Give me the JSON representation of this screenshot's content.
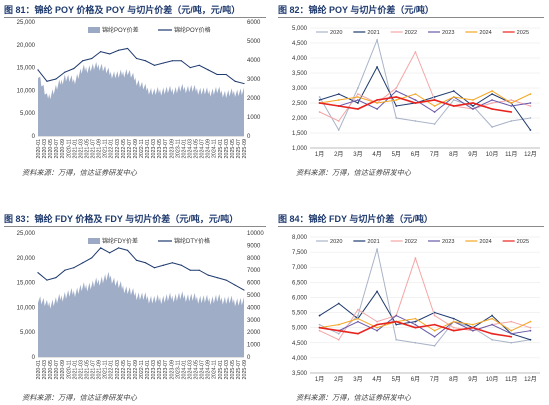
{
  "charts_meta": [
    {
      "title": "图 81：锦纶 POY 价格及 POY 与切片价差（元/吨，元/吨）",
      "source": "资料来源：万得，信达证券研发中心",
      "legend": [
        "锦纶POY价差",
        "锦纶POY价格"
      ]
    },
    {
      "title": "图 82：锦纶 POY 与切片价差（元/吨）",
      "source": "资料来源：万得，信达证券研发中心",
      "legend": [
        "2020",
        "2021",
        "2022",
        "2023",
        "2024",
        "2025"
      ]
    },
    {
      "title": "图 83：锦纶 FDY 价格及 FDY 与切片价差（元/吨，元/吨）",
      "source": "资料来源：万得，信达证券研发中心",
      "legend": [
        "锦纶FDY价差",
        "锦纶DTY价格"
      ]
    },
    {
      "title": "图 84：锦纶 FDY 与切片价差（元/吨）",
      "source": "资料来源：万得，信达证券研发中心",
      "legend": [
        "2020",
        "2021",
        "2022",
        "2023",
        "2024",
        "2025"
      ]
    }
  ],
  "chart_data": [
    {
      "type": "area",
      "x": [
        "2020-01",
        "2020-04",
        "2020-07",
        "2020-10",
        "2021-01",
        "2021-04",
        "2021-07",
        "2021-10",
        "2022-01",
        "2022-04",
        "2022-07",
        "2022-10",
        "2023-01",
        "2023-04",
        "2023-07",
        "2023-10",
        "2024-01",
        "2024-04",
        "2024-07",
        "2024-10",
        "2025-01",
        "2025-04",
        "2025-07",
        "2025-10"
      ],
      "xticks": [
        "2020-01",
        "2020-03",
        "2020-05",
        "2020-07",
        "2020-09",
        "2020-11",
        "2021-01",
        "2021-03",
        "2021-05",
        "2021-07",
        "2021-09",
        "2021-11",
        "2022-01",
        "2022-03",
        "2022-05",
        "2022-07",
        "2022-09",
        "2022-11",
        "2023-01",
        "2023-03",
        "2023-05",
        "2023-07",
        "2023-09",
        "2023-11",
        "2024-01",
        "2024-03",
        "2024-05",
        "2024-07",
        "2024-09",
        "2024-11",
        "2025-01",
        "2025-03",
        "2025-05",
        "2025-07",
        "2025-09"
      ],
      "series": [
        {
          "name": "锦纶POY价差",
          "axis": "right",
          "kind": "area",
          "color": "#9ba9c4",
          "values": [
            3300,
            2000,
            2500,
            3100,
            2900,
            3500,
            3600,
            3700,
            3300,
            3200,
            3400,
            2900,
            2500,
            2300,
            2400,
            2400,
            2500,
            2500,
            2400,
            2300,
            2400,
            2200,
            2300,
            2300
          ]
        },
        {
          "name": "锦纶POY价格",
          "axis": "left",
          "kind": "line",
          "color": "#1f3a6e",
          "values": [
            14500,
            12000,
            12500,
            14000,
            14800,
            16500,
            17000,
            18500,
            18000,
            18800,
            19200,
            17000,
            16500,
            15500,
            16000,
            16500,
            16500,
            15000,
            15500,
            14500,
            13500,
            13500,
            12000,
            11500
          ]
        }
      ],
      "yleft": {
        "min": 0,
        "max": 25000,
        "ticks": [
          0,
          5000,
          10000,
          15000,
          20000,
          25000
        ],
        "labels": [
          "0",
          "5,000",
          "10,000",
          "15,000",
          "20,000",
          "25,000"
        ]
      },
      "yright": {
        "min": 0,
        "max": 6000,
        "ticks": [
          0,
          1000,
          2000,
          3000,
          4000,
          5000,
          6000
        ],
        "labels": [
          "0",
          "1000",
          "2000",
          "3000",
          "4000",
          "5000",
          "6000"
        ]
      }
    },
    {
      "type": "line",
      "x": [
        "1月",
        "2月",
        "3月",
        "4月",
        "5月",
        "6月",
        "7月",
        "8月",
        "9月",
        "10月",
        "11月",
        "12月"
      ],
      "ylim": [
        1000,
        5000
      ],
      "yticks": [
        1000,
        1500,
        2000,
        2500,
        3000,
        3500,
        4000,
        4500,
        5000
      ],
      "ylabels": [
        "1,000",
        "1,500",
        "2,000",
        "2,500",
        "3,000",
        "3,500",
        "4,000",
        "4,500",
        "5,000"
      ],
      "series": [
        {
          "name": "2020",
          "color": "#a9b4c8",
          "values": [
            2700,
            1600,
            3000,
            4600,
            2000,
            1900,
            1800,
            2600,
            2400,
            1700,
            1900,
            2000
          ]
        },
        {
          "name": "2021",
          "color": "#1f3a6e",
          "values": [
            2600,
            2800,
            2500,
            3700,
            2400,
            2500,
            2700,
            2900,
            2400,
            2800,
            2500,
            1600
          ]
        },
        {
          "name": "2022",
          "color": "#f4a6a6",
          "values": [
            2200,
            1900,
            2800,
            2500,
            3000,
            4200,
            2600,
            2400,
            2300,
            2500,
            2600,
            2400
          ]
        },
        {
          "name": "2023",
          "color": "#6b5aa8",
          "values": [
            2500,
            2400,
            2600,
            2300,
            2900,
            2600,
            2200,
            2700,
            2300,
            2600,
            2400,
            2500
          ]
        },
        {
          "name": "2024",
          "color": "#f5a623",
          "values": [
            2500,
            2600,
            2700,
            2500,
            2600,
            2800,
            2400,
            2700,
            2600,
            2900,
            2500,
            2800
          ]
        },
        {
          "name": "2025",
          "color": "#e8231e",
          "values": [
            2500,
            2400,
            2300,
            2600,
            2700,
            2500,
            2600,
            2400,
            2500,
            2300,
            2200,
            null
          ]
        }
      ]
    },
    {
      "type": "area",
      "x": [
        "2020-01",
        "2020-04",
        "2020-07",
        "2020-10",
        "2021-01",
        "2021-04",
        "2021-07",
        "2021-10",
        "2022-01",
        "2022-04",
        "2022-07",
        "2022-10",
        "2023-01",
        "2023-04",
        "2023-07",
        "2023-10",
        "2024-01",
        "2024-04",
        "2024-07",
        "2024-10",
        "2025-01",
        "2025-04",
        "2025-07",
        "2025-10"
      ],
      "xticks": [
        "2020-01",
        "2020-03",
        "2020-05",
        "2020-07",
        "2020-09",
        "2020-11",
        "2021-01",
        "2021-03",
        "2021-05",
        "2021-07",
        "2021-09",
        "2021-11",
        "2022-01",
        "2022-03",
        "2022-05",
        "2022-07",
        "2022-09",
        "2022-11",
        "2023-01",
        "2023-03",
        "2023-05",
        "2023-07",
        "2023-09",
        "2023-11",
        "2024-01",
        "2024-03",
        "2024-05",
        "2024-07",
        "2024-09",
        "2024-11",
        "2025-01",
        "2025-03",
        "2025-05",
        "2025-07",
        "2025-09"
      ],
      "series": [
        {
          "name": "锦纶FDY价差",
          "axis": "right",
          "kind": "area",
          "color": "#9ba9c4",
          "values": [
            4800,
            4200,
            4500,
            5000,
            5200,
            5600,
            5800,
            6200,
            6500,
            5800,
            5400,
            5000,
            4800,
            4600,
            4700,
            4800,
            4900,
            4800,
            4700,
            4600,
            4700,
            4600,
            4500,
            4400
          ]
        },
        {
          "name": "锦纶DTY价格",
          "axis": "left",
          "kind": "line",
          "color": "#1f3a6e",
          "values": [
            17000,
            15500,
            16000,
            17500,
            18000,
            19000,
            20000,
            22000,
            21000,
            22000,
            21500,
            19500,
            19000,
            18000,
            18500,
            19000,
            18500,
            17500,
            17500,
            16500,
            16000,
            15500,
            14500,
            13500
          ]
        }
      ],
      "yleft": {
        "min": 0,
        "max": 25000,
        "ticks": [
          0,
          5000,
          10000,
          15000,
          20000,
          25000
        ],
        "labels": [
          "0",
          "5,000",
          "10,000",
          "15,000",
          "20,000",
          "25,000"
        ]
      },
      "yright": {
        "min": 0,
        "max": 10000,
        "ticks": [
          0,
          1000,
          2000,
          3000,
          4000,
          5000,
          6000,
          7000,
          8000,
          9000,
          10000
        ],
        "labels": [
          "0",
          "1000",
          "2000",
          "3000",
          "4000",
          "5000",
          "6000",
          "7000",
          "8000",
          "9000",
          "10000"
        ]
      }
    },
    {
      "type": "line",
      "x": [
        "1月",
        "2月",
        "3月",
        "4月",
        "5月",
        "6月",
        "7月",
        "8月",
        "9月",
        "10月",
        "11月",
        "12月"
      ],
      "ylim": [
        3500,
        8000
      ],
      "yticks": [
        3500,
        4000,
        4500,
        5000,
        5500,
        6000,
        6500,
        7000,
        7500,
        8000
      ],
      "ylabels": [
        "3,500",
        "4,000",
        "4,500",
        "5,000",
        "5,500",
        "6,000",
        "6,500",
        "7,000",
        "7,500",
        "8,000"
      ],
      "series": [
        {
          "name": "2020",
          "color": "#a9b4c8",
          "values": [
            5100,
            4800,
            5400,
            7600,
            4600,
            4500,
            4400,
            5200,
            5000,
            4600,
            4500,
            4600
          ]
        },
        {
          "name": "2021",
          "color": "#1f3a6e",
          "values": [
            5400,
            5800,
            5300,
            6200,
            5100,
            5200,
            5500,
            5300,
            5000,
            5400,
            4800,
            4600
          ]
        },
        {
          "name": "2022",
          "color": "#f4a6a6",
          "values": [
            4900,
            4600,
            5600,
            5200,
            5400,
            7300,
            5400,
            5000,
            4900,
            5100,
            5200,
            5000
          ]
        },
        {
          "name": "2023",
          "color": "#6b5aa8",
          "values": [
            5000,
            4900,
            5200,
            4900,
            5400,
            5100,
            4700,
            5200,
            4900,
            5100,
            4800,
            4900
          ]
        },
        {
          "name": "2024",
          "color": "#f5a623",
          "values": [
            5000,
            5100,
            5300,
            5000,
            5200,
            5300,
            4900,
            5200,
            5100,
            5300,
            4900,
            5200
          ]
        },
        {
          "name": "2025",
          "color": "#e8231e",
          "values": [
            5000,
            4900,
            4800,
            5100,
            5200,
            5000,
            5100,
            4900,
            5000,
            4800,
            4700,
            null
          ]
        }
      ]
    }
  ]
}
